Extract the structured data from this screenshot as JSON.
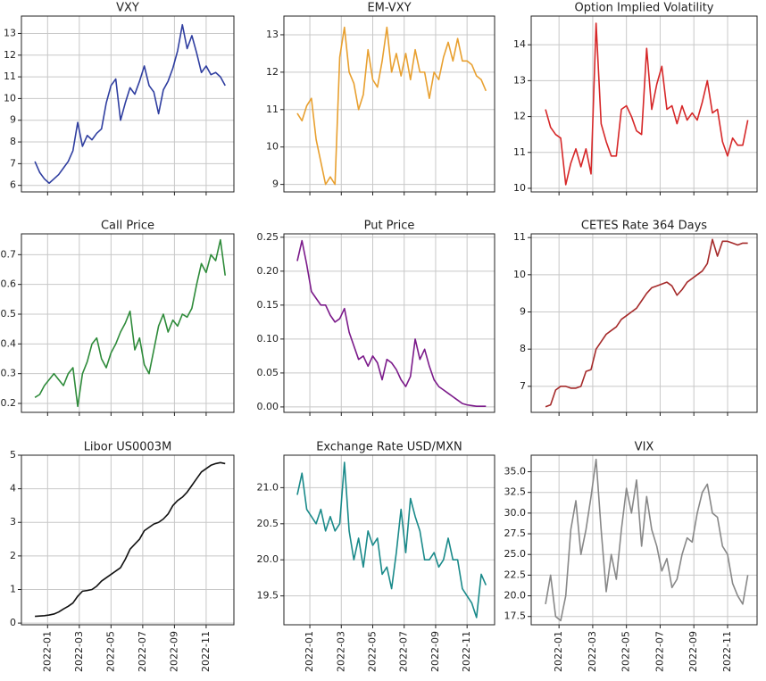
{
  "chart_data": [
    {
      "type": "line",
      "title": "VXY",
      "color": "#2f3ea0",
      "grid": true,
      "x": [
        0.2,
        0.5,
        0.8,
        1.1,
        1.4,
        1.7,
        2.0,
        2.3,
        2.6,
        2.9,
        3.2,
        3.5,
        3.8,
        4.1,
        4.4,
        4.7,
        5.0,
        5.3,
        5.6,
        5.9,
        6.2,
        6.5,
        6.8,
        7.1,
        7.4,
        7.7,
        8.0,
        8.3,
        8.6,
        8.9,
        9.2,
        9.5,
        9.8,
        10.1,
        10.4,
        10.7,
        11.0,
        11.3,
        11.6,
        11.9,
        12.2
      ],
      "values": [
        7.1,
        6.6,
        6.3,
        6.1,
        6.3,
        6.5,
        6.8,
        7.1,
        7.6,
        8.9,
        7.8,
        8.3,
        8.1,
        8.4,
        8.6,
        9.8,
        10.6,
        10.9,
        9.0,
        9.8,
        10.5,
        10.2,
        10.8,
        11.5,
        10.6,
        10.3,
        9.3,
        10.4,
        10.8,
        11.4,
        12.2,
        13.4,
        12.3,
        12.9,
        12.1,
        11.2,
        11.5,
        11.1,
        11.2,
        11.0,
        10.6
      ],
      "xlim": [
        -0.65,
        12.75
      ],
      "xticks": [
        1,
        3,
        5,
        7,
        9,
        11
      ],
      "ylim": [
        5.7,
        13.8
      ],
      "yticks": [
        6,
        7,
        8,
        9,
        10,
        11,
        12,
        13
      ]
    },
    {
      "type": "line",
      "title": "EM-VXY",
      "color": "#e8a030",
      "grid": true,
      "x": [
        0.2,
        0.5,
        0.8,
        1.1,
        1.4,
        1.7,
        2.0,
        2.3,
        2.6,
        2.9,
        3.2,
        3.5,
        3.8,
        4.1,
        4.4,
        4.7,
        5.0,
        5.3,
        5.6,
        5.9,
        6.2,
        6.5,
        6.8,
        7.1,
        7.4,
        7.7,
        8.0,
        8.3,
        8.6,
        8.9,
        9.2,
        9.5,
        9.8,
        10.1,
        10.4,
        10.7,
        11.0,
        11.3,
        11.6,
        11.9,
        12.2
      ],
      "values": [
        10.9,
        10.7,
        11.1,
        11.3,
        10.2,
        9.6,
        9.0,
        9.2,
        9.0,
        12.4,
        13.2,
        12.0,
        11.7,
        11.0,
        11.4,
        12.6,
        11.8,
        11.6,
        12.3,
        13.2,
        12.0,
        12.5,
        11.9,
        12.5,
        11.8,
        12.6,
        12.0,
        12.0,
        11.3,
        12.0,
        11.8,
        12.4,
        12.8,
        12.3,
        12.9,
        12.3,
        12.3,
        12.2,
        11.9,
        11.8,
        11.5
      ],
      "xlim": [
        -0.65,
        12.75
      ],
      "xticks": [
        1,
        3,
        5,
        7,
        9,
        11
      ],
      "ylim": [
        8.8,
        13.5
      ],
      "yticks": [
        9,
        10,
        11,
        12,
        13
      ]
    },
    {
      "type": "line",
      "title": "Option Implied Volatility",
      "color": "#d62728",
      "grid": true,
      "x": [
        0.2,
        0.5,
        0.8,
        1.1,
        1.4,
        1.7,
        2.0,
        2.3,
        2.6,
        2.9,
        3.2,
        3.5,
        3.8,
        4.1,
        4.4,
        4.7,
        5.0,
        5.3,
        5.6,
        5.9,
        6.2,
        6.5,
        6.8,
        7.1,
        7.4,
        7.7,
        8.0,
        8.3,
        8.6,
        8.9,
        9.2,
        9.5,
        9.8,
        10.1,
        10.4,
        10.7,
        11.0,
        11.3,
        11.6,
        11.9,
        12.2
      ],
      "values": [
        12.2,
        11.7,
        11.5,
        11.4,
        10.1,
        10.7,
        11.1,
        10.6,
        11.1,
        10.4,
        14.6,
        11.8,
        11.3,
        10.9,
        10.9,
        12.2,
        12.3,
        12.0,
        11.6,
        11.5,
        13.9,
        12.2,
        12.9,
        13.4,
        12.2,
        12.3,
        11.8,
        12.3,
        11.9,
        12.1,
        11.9,
        12.4,
        13.0,
        12.1,
        12.2,
        11.3,
        10.9,
        11.4,
        11.2,
        11.2,
        11.9
      ],
      "xlim": [
        -0.65,
        12.75
      ],
      "xticks": [
        1,
        3,
        5,
        7,
        9,
        11
      ],
      "ylim": [
        9.9,
        14.8
      ],
      "yticks": [
        10,
        11,
        12,
        13,
        14
      ]
    },
    {
      "type": "line",
      "title": "Call Price",
      "color": "#2e8b3a",
      "grid": true,
      "x": [
        0.2,
        0.5,
        0.8,
        1.1,
        1.4,
        1.7,
        2.0,
        2.3,
        2.6,
        2.9,
        3.2,
        3.5,
        3.8,
        4.1,
        4.4,
        4.7,
        5.0,
        5.3,
        5.6,
        5.9,
        6.2,
        6.5,
        6.8,
        7.1,
        7.4,
        7.7,
        8.0,
        8.3,
        8.6,
        8.9,
        9.2,
        9.5,
        9.8,
        10.1,
        10.4,
        10.7,
        11.0,
        11.3,
        11.6,
        11.9,
        12.2
      ],
      "values": [
        0.22,
        0.23,
        0.26,
        0.28,
        0.3,
        0.28,
        0.26,
        0.3,
        0.32,
        0.19,
        0.3,
        0.34,
        0.4,
        0.42,
        0.35,
        0.32,
        0.37,
        0.4,
        0.44,
        0.47,
        0.51,
        0.38,
        0.42,
        0.33,
        0.3,
        0.38,
        0.46,
        0.5,
        0.44,
        0.48,
        0.46,
        0.5,
        0.49,
        0.52,
        0.6,
        0.67,
        0.64,
        0.7,
        0.68,
        0.75,
        0.63
      ],
      "xlim": [
        -0.65,
        12.75
      ],
      "xticks": [
        1,
        3,
        5,
        7,
        9,
        11
      ],
      "ylim": [
        0.17,
        0.77
      ],
      "yticks": [
        0.2,
        0.3,
        0.4,
        0.5,
        0.6,
        0.7
      ]
    },
    {
      "type": "line",
      "title": "Put Price",
      "color": "#7b1a8a",
      "grid": true,
      "x": [
        0.2,
        0.5,
        0.8,
        1.1,
        1.4,
        1.7,
        2.0,
        2.3,
        2.6,
        2.9,
        3.2,
        3.5,
        3.8,
        4.1,
        4.4,
        4.7,
        5.0,
        5.3,
        5.6,
        5.9,
        6.2,
        6.5,
        6.8,
        7.1,
        7.4,
        7.7,
        8.0,
        8.3,
        8.6,
        8.9,
        9.2,
        9.5,
        9.8,
        10.1,
        10.4,
        10.7,
        11.0,
        11.3,
        11.6,
        11.9,
        12.2
      ],
      "values": [
        0.215,
        0.245,
        0.21,
        0.17,
        0.16,
        0.15,
        0.15,
        0.135,
        0.125,
        0.13,
        0.145,
        0.11,
        0.09,
        0.07,
        0.075,
        0.06,
        0.075,
        0.065,
        0.04,
        0.07,
        0.065,
        0.055,
        0.04,
        0.03,
        0.045,
        0.1,
        0.07,
        0.085,
        0.06,
        0.04,
        0.03,
        0.025,
        0.02,
        0.015,
        0.01,
        0.005,
        0.003,
        0.002,
        0.001,
        0.001,
        0.001
      ],
      "xlim": [
        -0.65,
        12.75
      ],
      "xticks": [
        1,
        3,
        5,
        7,
        9,
        11
      ],
      "ylim": [
        -0.008,
        0.255
      ],
      "yticks": [
        {
          "value": 0,
          "label": "0.00"
        },
        0.05,
        {
          "value": 0.1,
          "label": "0.10"
        },
        0.15,
        {
          "value": 0.2,
          "label": "0.20"
        },
        0.25
      ]
    },
    {
      "type": "line",
      "title": "CETES Rate 364 Days",
      "color": "#a52a2a",
      "grid": true,
      "x": [
        0.2,
        0.5,
        0.8,
        1.1,
        1.4,
        1.7,
        2.0,
        2.3,
        2.6,
        2.9,
        3.2,
        3.5,
        3.8,
        4.1,
        4.4,
        4.7,
        5.0,
        5.3,
        5.6,
        5.9,
        6.2,
        6.5,
        6.8,
        7.1,
        7.4,
        7.7,
        8.0,
        8.3,
        8.6,
        8.9,
        9.2,
        9.5,
        9.8,
        10.1,
        10.4,
        10.7,
        11.0,
        11.3,
        11.6,
        11.9,
        12.2
      ],
      "values": [
        6.45,
        6.5,
        6.9,
        7.0,
        7.0,
        6.95,
        6.95,
        7.0,
        7.4,
        7.45,
        8.0,
        8.2,
        8.4,
        8.5,
        8.6,
        8.8,
        8.9,
        9.0,
        9.1,
        9.3,
        9.5,
        9.65,
        9.7,
        9.75,
        9.8,
        9.7,
        9.45,
        9.6,
        9.8,
        9.9,
        10.0,
        10.1,
        10.3,
        10.95,
        10.5,
        10.9,
        10.9,
        10.85,
        10.8,
        10.85,
        10.85
      ],
      "xlim": [
        -0.65,
        12.75
      ],
      "xticks": [
        1,
        3,
        5,
        7,
        9,
        11
      ],
      "ylim": [
        6.3,
        11.1
      ],
      "yticks": [
        7,
        8,
        9,
        10,
        11
      ]
    },
    {
      "type": "line",
      "title": "Libor US0003M",
      "color": "#111111",
      "grid": true,
      "x": [
        0.2,
        0.5,
        0.8,
        1.1,
        1.4,
        1.7,
        2.0,
        2.3,
        2.6,
        2.9,
        3.2,
        3.5,
        3.8,
        4.1,
        4.4,
        4.7,
        5.0,
        5.3,
        5.6,
        5.9,
        6.2,
        6.5,
        6.8,
        7.1,
        7.4,
        7.7,
        8.0,
        8.3,
        8.6,
        8.9,
        9.2,
        9.5,
        9.8,
        10.1,
        10.4,
        10.7,
        11.0,
        11.3,
        11.6,
        11.9,
        12.2
      ],
      "values": [
        0.2,
        0.21,
        0.22,
        0.24,
        0.27,
        0.33,
        0.42,
        0.5,
        0.6,
        0.8,
        0.95,
        0.97,
        1.0,
        1.1,
        1.25,
        1.35,
        1.45,
        1.55,
        1.65,
        1.9,
        2.2,
        2.35,
        2.5,
        2.75,
        2.85,
        2.95,
        3.0,
        3.1,
        3.25,
        3.5,
        3.65,
        3.75,
        3.9,
        4.1,
        4.3,
        4.5,
        4.6,
        4.7,
        4.75,
        4.78,
        4.75
      ],
      "xlim": [
        -0.65,
        12.75
      ],
      "ylim": [
        -0.05,
        5.0
      ],
      "yticks": [
        0,
        1,
        2,
        3,
        4,
        5
      ],
      "xticks": [
        {
          "value": 1,
          "label": "2022-01"
        },
        {
          "value": 3,
          "label": "2022-03"
        },
        {
          "value": 5,
          "label": "2022-05"
        },
        {
          "value": 7,
          "label": "2022-07"
        },
        {
          "value": 9,
          "label": "2022-09"
        },
        {
          "value": 11,
          "label": "2022-11"
        }
      ]
    },
    {
      "type": "line",
      "title": "Exchange Rate USD/MXN",
      "color": "#1a8a8a",
      "grid": true,
      "x": [
        0.2,
        0.5,
        0.8,
        1.1,
        1.4,
        1.7,
        2.0,
        2.3,
        2.6,
        2.9,
        3.2,
        3.5,
        3.8,
        4.1,
        4.4,
        4.7,
        5.0,
        5.3,
        5.6,
        5.9,
        6.2,
        6.5,
        6.8,
        7.1,
        7.4,
        7.7,
        8.0,
        8.3,
        8.6,
        8.9,
        9.2,
        9.5,
        9.8,
        10.1,
        10.4,
        10.7,
        11.0,
        11.3,
        11.6,
        11.9,
        12.2
      ],
      "values": [
        20.9,
        21.2,
        20.7,
        20.6,
        20.5,
        20.7,
        20.4,
        20.6,
        20.4,
        20.5,
        21.35,
        20.4,
        20.0,
        20.3,
        19.9,
        20.4,
        20.2,
        20.3,
        19.8,
        19.9,
        19.6,
        20.1,
        20.7,
        20.1,
        20.85,
        20.6,
        20.4,
        20.0,
        20.0,
        20.1,
        19.9,
        20.0,
        20.3,
        20.0,
        20.0,
        19.6,
        19.5,
        19.4,
        19.2,
        19.8,
        19.65
      ],
      "xlim": [
        -0.65,
        12.75
      ],
      "ylim": [
        19.1,
        21.45
      ],
      "yticks": [
        19.5,
        {
          "value": 20,
          "label": "20.0"
        },
        20.5,
        {
          "value": 21,
          "label": "21.0"
        }
      ],
      "xticks": [
        {
          "value": 1,
          "label": "2022-01"
        },
        {
          "value": 3,
          "label": "2022-03"
        },
        {
          "value": 5,
          "label": "2022-05"
        },
        {
          "value": 7,
          "label": "2022-07"
        },
        {
          "value": 9,
          "label": "2022-09"
        },
        {
          "value": 11,
          "label": "2022-11"
        }
      ]
    },
    {
      "type": "line",
      "title": "VIX",
      "color": "#888888",
      "grid": true,
      "x": [
        0.2,
        0.5,
        0.8,
        1.1,
        1.4,
        1.7,
        2.0,
        2.3,
        2.6,
        2.9,
        3.2,
        3.5,
        3.8,
        4.1,
        4.4,
        4.7,
        5.0,
        5.3,
        5.6,
        5.9,
        6.2,
        6.5,
        6.8,
        7.1,
        7.4,
        7.7,
        8.0,
        8.3,
        8.6,
        8.9,
        9.2,
        9.5,
        9.8,
        10.1,
        10.4,
        10.7,
        11.0,
        11.3,
        11.6,
        11.9,
        12.2
      ],
      "values": [
        19,
        22.5,
        17.5,
        17,
        20,
        28,
        31.5,
        25,
        28,
        32,
        36.5,
        28,
        20.5,
        25,
        22,
        28,
        33,
        30,
        34,
        26,
        32,
        28,
        26,
        23,
        24.5,
        21,
        22,
        25,
        27,
        26.5,
        30,
        32.5,
        33.5,
        30,
        29.5,
        26,
        25,
        21.5,
        20,
        19,
        22.5
      ],
      "xlim": [
        -0.65,
        12.75
      ],
      "ylim": [
        16.5,
        37
      ],
      "yticks": [
        17.5,
        {
          "value": 20,
          "label": "20.0"
        },
        22.5,
        {
          "value": 25,
          "label": "25.0"
        },
        27.5,
        {
          "value": 30,
          "label": "30.0"
        },
        32.5,
        {
          "value": 35,
          "label": "35.0"
        }
      ],
      "xticks": [
        {
          "value": 1,
          "label": "2022-01"
        },
        {
          "value": 3,
          "label": "2022-03"
        },
        {
          "value": 5,
          "label": "2022-05"
        },
        {
          "value": 7,
          "label": "2022-07"
        },
        {
          "value": 9,
          "label": "2022-09"
        },
        {
          "value": 11,
          "label": "2022-11"
        }
      ]
    }
  ]
}
